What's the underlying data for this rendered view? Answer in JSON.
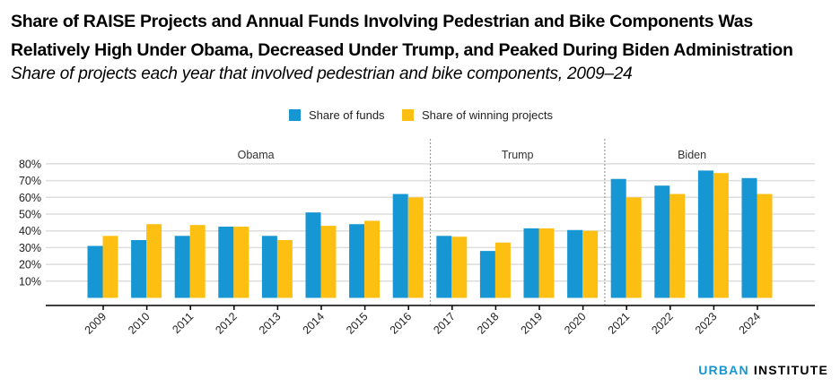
{
  "header": {
    "title": "Share of RAISE Projects and Annual Funds Involving Pedestrian and Bike Components Was Relatively High Under Obama, Decreased Under Trump, and Peaked During Biden Administration",
    "subtitle": "Share of projects each year that involved pedestrian and bike components, 2009–24"
  },
  "footer": {
    "brand_part1": "URBAN",
    "brand_part2": "INSTITUTE"
  },
  "colors": {
    "funds": "#1696d2",
    "projects": "#fdbf11",
    "grid": "#dedddd",
    "axis": "#000000",
    "divider": "#9d9d9d"
  },
  "chart_data": {
    "type": "bar",
    "title": "Share of RAISE Projects and Annual Funds Involving Pedestrian and Bike Components Was Relatively High Under Obama, Decreased Under Trump, and Peaked During Biden Administration",
    "subtitle": "Share of projects each year that involved pedestrian and bike components, 2009–24",
    "xlabel": "",
    "ylabel": "",
    "ylim": [
      0,
      0.8
    ],
    "yticks": [
      0.1,
      0.2,
      0.3,
      0.4,
      0.5,
      0.6,
      0.7,
      0.8
    ],
    "ytick_labels": [
      "10%",
      "20%",
      "30%",
      "40%",
      "50%",
      "60%",
      "70%",
      "80%"
    ],
    "grid": true,
    "legend_position": "top-center",
    "categories": [
      "2009",
      "2010",
      "2011",
      "2012",
      "2013",
      "2014",
      "2015",
      "2016",
      "2017",
      "2018",
      "2019",
      "2020",
      "2021",
      "2022",
      "2023",
      "2024"
    ],
    "series": [
      {
        "name": "Share of funds",
        "values": [
          0.31,
          0.345,
          0.37,
          0.425,
          0.37,
          0.51,
          0.44,
          0.62,
          0.37,
          0.28,
          0.415,
          0.405,
          0.71,
          0.67,
          0.76,
          0.715
        ]
      },
      {
        "name": "Share of winning projects",
        "values": [
          0.37,
          0.44,
          0.435,
          0.425,
          0.345,
          0.43,
          0.46,
          0.6,
          0.365,
          0.33,
          0.415,
          0.4,
          0.6,
          0.62,
          0.745,
          0.62
        ]
      }
    ],
    "annotations": [
      {
        "label": "Obama",
        "from": "2009",
        "to": "2016"
      },
      {
        "label": "Trump",
        "from": "2017",
        "to": "2020"
      },
      {
        "label": "Biden",
        "from": "2021",
        "to": "2024"
      }
    ]
  }
}
